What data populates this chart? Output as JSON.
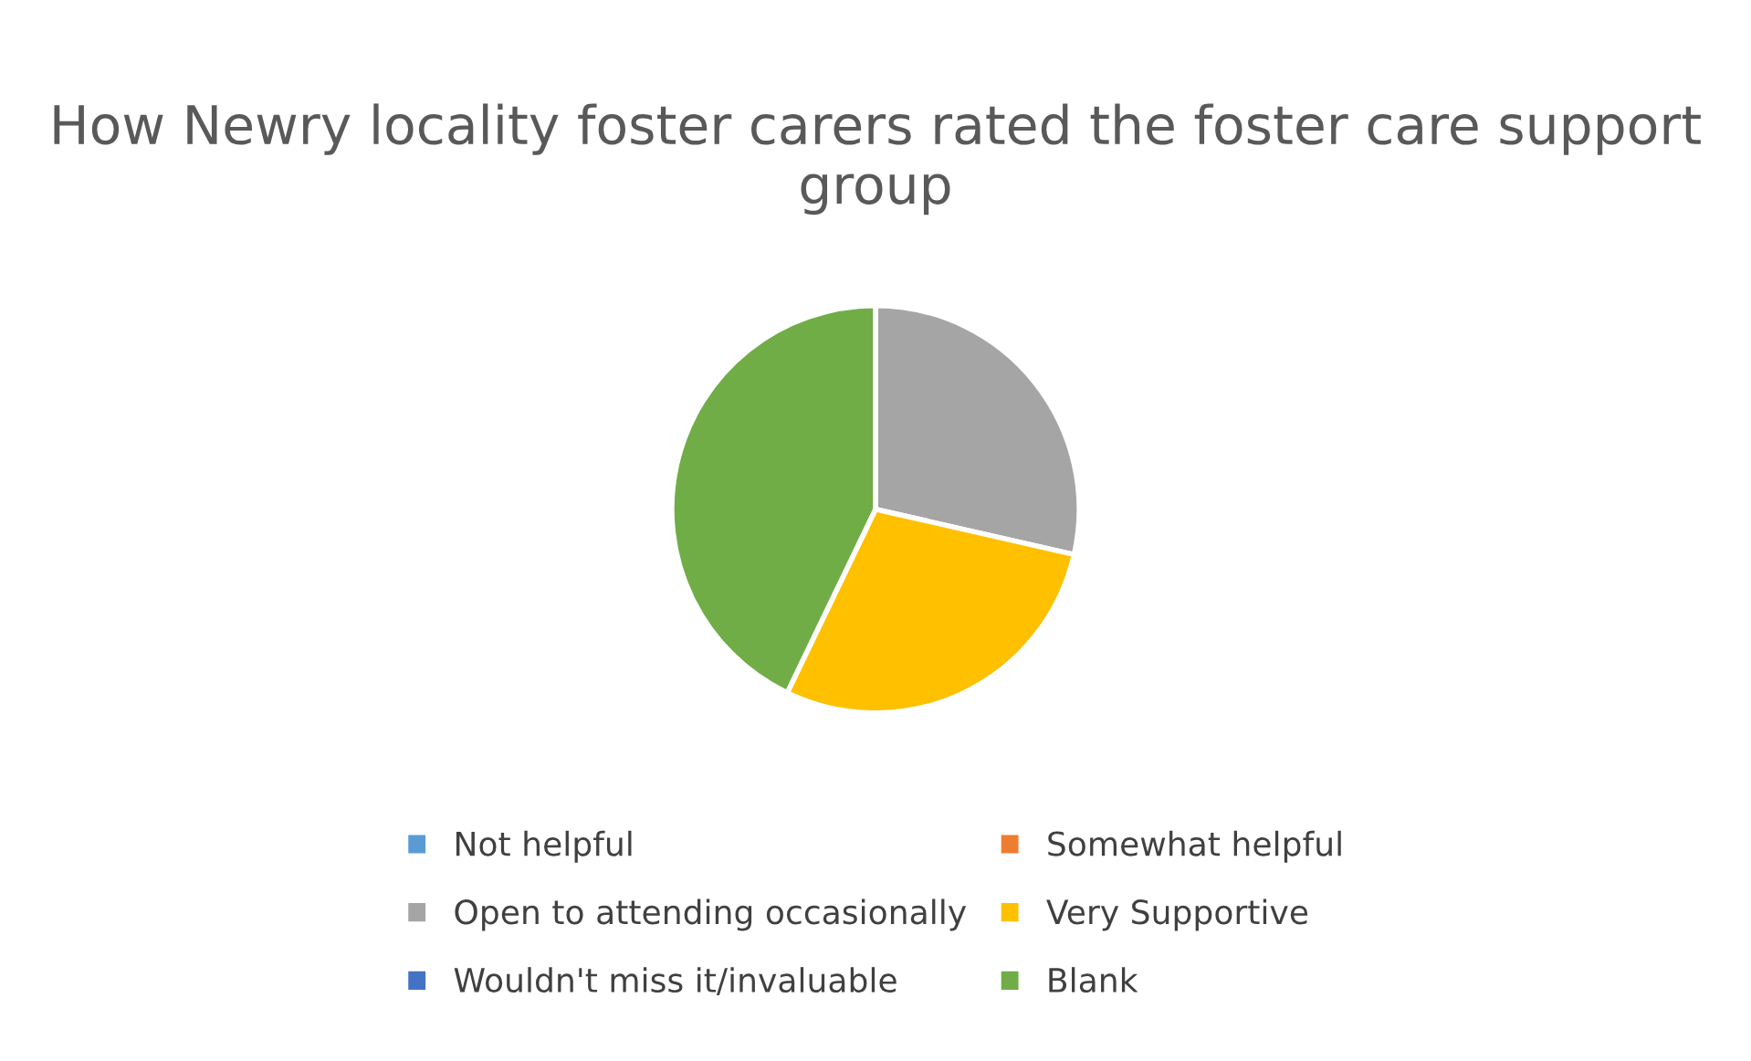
{
  "chart_data": {
    "type": "pie",
    "title": "How Newry locality foster carers rated the foster care support group",
    "categories": [
      "Not helpful",
      "Somewhat helpful",
      "Open to attending occasionally",
      "Very Supportive",
      "Wouldn't miss it/invaluable",
      "Blank"
    ],
    "values": [
      0,
      0,
      28.57,
      28.57,
      0,
      42.86
    ],
    "colors": [
      "#5b9bd5",
      "#ed7d31",
      "#a5a5a5",
      "#ffc000",
      "#4472c4",
      "#70ad47"
    ],
    "legend": "bottom"
  }
}
